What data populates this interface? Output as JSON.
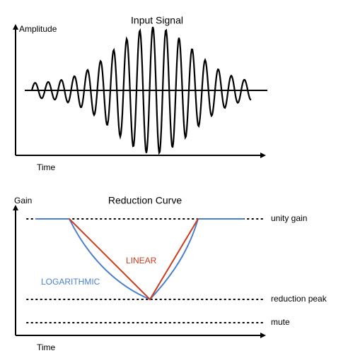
{
  "input_panel": {
    "title": "Input Signal",
    "y_label": "Amplitude",
    "x_label": "Time"
  },
  "reduction_panel": {
    "title": "Reduction Curve",
    "y_label": "Gain",
    "x_label": "Time",
    "levels": [
      "unity gain",
      "reduction peak",
      "mute"
    ],
    "curves": {
      "linear": "LINEAR",
      "logarithmic": "LOGARITHMIC"
    }
  }
}
